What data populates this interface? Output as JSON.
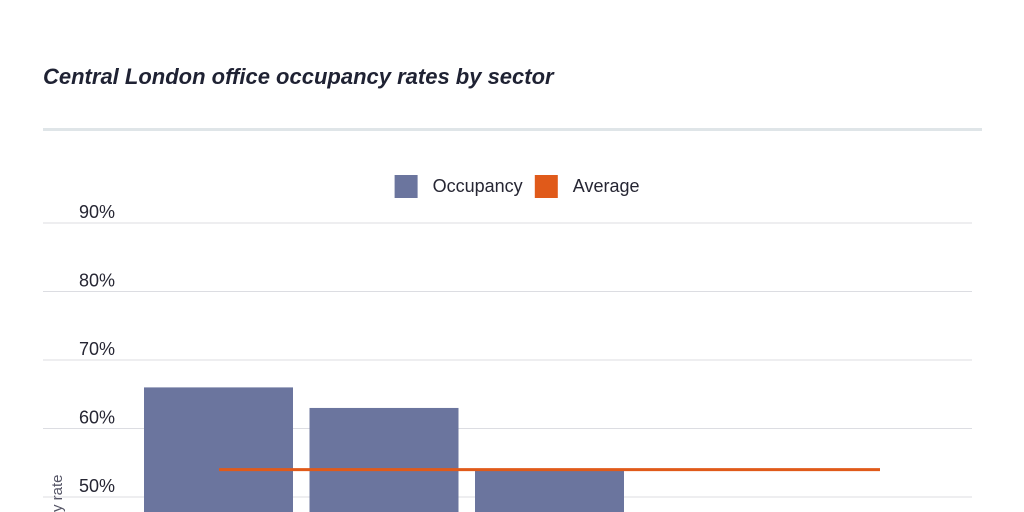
{
  "chart_data": {
    "type": "bar",
    "title": "Central London office occupancy rates by sector",
    "ylabel": "y rate",
    "ylim": [
      40,
      90
    ],
    "yticks": [
      50,
      60,
      70,
      80,
      90
    ],
    "ytick_labels": [
      "50%",
      "60%",
      "70%",
      "80%",
      "90%"
    ],
    "grid": true,
    "legend_position": "top",
    "series": [
      {
        "name": "Occupancy",
        "color": "#6b759e",
        "values": [
          66,
          63,
          54
        ]
      },
      {
        "name": "Average",
        "color": "#e05a1a",
        "type": "line",
        "value": 54
      }
    ]
  }
}
